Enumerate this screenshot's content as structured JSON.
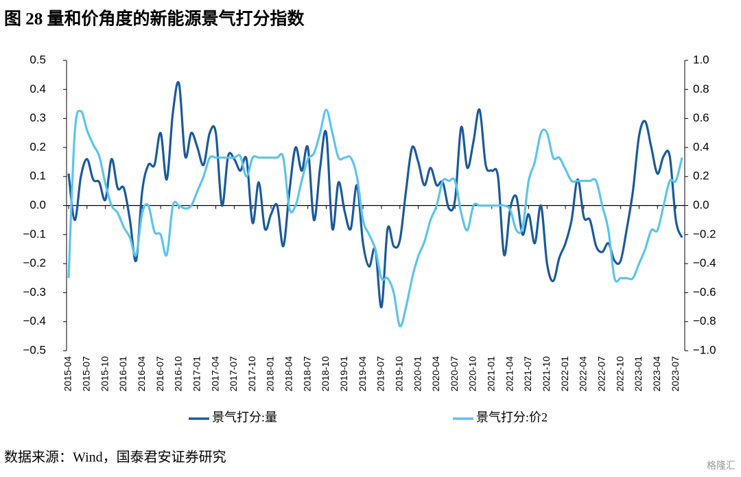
{
  "chart_data": {
    "type": "line",
    "title": "图 28 量和价角度的新能源景气打分指数",
    "source": "数据来源：Wind，国泰君安证券研究",
    "watermark": "格隆汇",
    "categories": [
      "2015-04",
      null,
      null,
      "2015-07",
      null,
      null,
      "2015-10",
      null,
      null,
      "2016-01",
      null,
      null,
      "2016-04",
      null,
      null,
      "2016-07",
      null,
      null,
      "2016-10",
      null,
      null,
      "2017-01",
      null,
      null,
      "2017-04",
      null,
      null,
      "2017-07",
      null,
      null,
      "2017-10",
      null,
      null,
      "2018-01",
      null,
      null,
      "2018-04",
      null,
      null,
      "2018-07",
      null,
      null,
      "2018-10",
      null,
      null,
      "2019-01",
      null,
      null,
      "2019-04",
      null,
      null,
      "2019-07",
      null,
      null,
      "2019-10",
      null,
      null,
      "2020-01",
      null,
      null,
      "2020-04",
      null,
      null,
      "2020-07",
      null,
      null,
      "2020-10",
      null,
      null,
      "2021-01",
      null,
      null,
      "2021-04",
      null,
      null,
      "2021-07",
      null,
      null,
      "2021-10",
      null,
      null,
      "2022-01",
      null,
      null,
      "2022-04",
      null,
      null,
      "2022-07",
      null,
      null,
      "2022-10",
      null,
      null,
      "2023-01",
      null,
      null,
      "2023-04",
      null,
      null,
      "2023-07",
      null
    ],
    "series": [
      {
        "name": "景气打分:量",
        "color": "#1a5a9c",
        "values": [
          0.11,
          -0.05,
          0.1,
          0.16,
          0.09,
          0.08,
          0.02,
          0.16,
          0.06,
          0.06,
          -0.05,
          -0.19,
          0.05,
          0.14,
          0.14,
          0.25,
          0.09,
          0.32,
          0.42,
          0.17,
          0.25,
          0.2,
          0.14,
          0.25,
          0.25,
          0.0,
          0.17,
          0.16,
          0.12,
          0.16,
          -0.06,
          0.08,
          -0.08,
          -0.03,
          0.0,
          -0.14,
          0.05,
          0.2,
          0.12,
          0.2,
          -0.05,
          0.13,
          0.25,
          -0.08,
          0.08,
          -0.02,
          -0.08,
          0.07,
          -0.13,
          -0.21,
          -0.15,
          -0.35,
          -0.08,
          -0.14,
          -0.12,
          0.05,
          0.2,
          0.15,
          0.07,
          0.13,
          0.07,
          0.08,
          -0.01,
          0.02,
          0.27,
          0.13,
          0.22,
          0.33,
          0.14,
          0.12,
          0.1,
          -0.17,
          -0.01,
          0.03,
          -0.1,
          -0.03,
          -0.13,
          0.0,
          -0.2,
          -0.26,
          -0.18,
          -0.13,
          -0.05,
          0.09,
          -0.04,
          -0.05,
          -0.14,
          -0.16,
          -0.13,
          -0.19,
          -0.19,
          -0.08,
          0.05,
          0.24,
          0.29,
          0.2,
          0.11,
          0.17,
          0.17,
          -0.05,
          -0.11
        ]
      },
      {
        "name": "景气打分:价2",
        "color": "#5bc4ee",
        "axis": "y2",
        "values": [
          -0.5,
          0.5,
          0.65,
          0.52,
          0.42,
          0.34,
          0.15,
          0.0,
          -0.05,
          -0.15,
          -0.22,
          -0.34,
          -0.05,
          0.0,
          -0.18,
          -0.2,
          -0.34,
          0.0,
          0.0,
          -0.02,
          0.0,
          0.1,
          0.2,
          0.33,
          0.33,
          0.33,
          0.33,
          0.33,
          0.34,
          0.2,
          0.33,
          0.33,
          0.33,
          0.33,
          0.33,
          0.33,
          -0.02,
          0.0,
          0.17,
          0.32,
          0.36,
          0.5,
          0.66,
          0.5,
          0.33,
          0.33,
          0.33,
          0.2,
          -0.1,
          -0.2,
          -0.3,
          -0.5,
          -0.5,
          -0.6,
          -0.83,
          -0.7,
          -0.5,
          -0.35,
          -0.25,
          -0.1,
          0.0,
          0.17,
          0.17,
          0.17,
          -0.05,
          -0.17,
          0.0,
          0.0,
          0.0,
          0.0,
          0.0,
          0.0,
          -0.03,
          -0.17,
          -0.15,
          0.17,
          0.3,
          0.5,
          0.5,
          0.33,
          0.33,
          0.25,
          0.17,
          0.17,
          0.17,
          0.17,
          0.17,
          0.0,
          -0.17,
          -0.5,
          -0.5,
          -0.5,
          -0.5,
          -0.4,
          -0.3,
          -0.17,
          -0.17,
          0.0,
          0.17,
          0.17,
          0.33
        ]
      }
    ],
    "ylim": [
      -0.5,
      0.5
    ],
    "yticks": [
      {
        "value": -0.5,
        "label": "−0.5"
      },
      {
        "value": -0.4,
        "label": "−0.4"
      },
      {
        "value": -0.3,
        "label": "−0.3"
      },
      {
        "value": -0.2,
        "label": "−0.2"
      },
      {
        "value": -0.1,
        "label": "−0.1"
      },
      {
        "value": 0,
        "label": "0.0"
      },
      0.1,
      0.2,
      0.3,
      0.4,
      0.5
    ],
    "y2lim": [
      -1,
      1
    ],
    "y2ticks": [
      {
        "value": -1,
        "label": "−1.0"
      },
      {
        "value": -0.8,
        "label": "−0.8"
      },
      {
        "value": -0.6,
        "label": "−0.6"
      },
      {
        "value": -0.4,
        "label": "−0.4"
      },
      {
        "value": -0.2,
        "label": "−0.2"
      },
      {
        "value": 0,
        "label": "0.0"
      },
      0.2,
      0.4,
      0.6,
      0.8,
      {
        "value": 1,
        "label": "1.0"
      }
    ],
    "legend": "bottom"
  }
}
